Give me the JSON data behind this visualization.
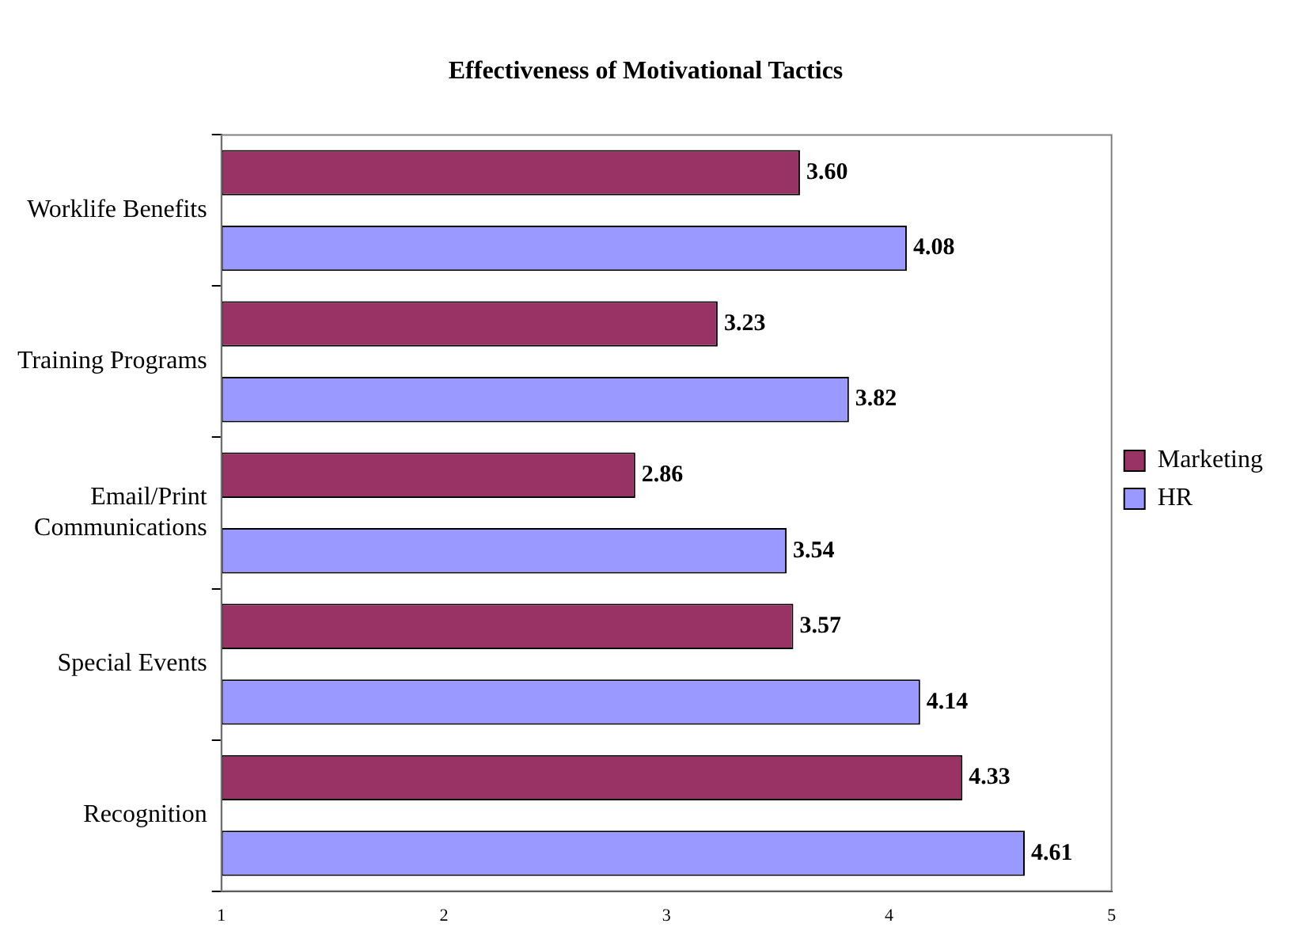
{
  "chart_data": {
    "type": "bar",
    "orientation": "horizontal",
    "title": "Effectiveness of Motivational Tactics",
    "categories": [
      "Worklife Benefits",
      "Training Programs",
      "Email/Print Communications",
      "Special Events",
      "Recognition"
    ],
    "series": [
      {
        "name": "Marketing",
        "color": "#993366",
        "values": [
          3.6,
          3.23,
          2.86,
          3.57,
          4.33
        ],
        "value_labels": [
          "3.60",
          "3.23",
          "2.86",
          "3.57",
          "4.33"
        ]
      },
      {
        "name": "HR",
        "color": "#9999ff",
        "values": [
          4.08,
          3.82,
          3.54,
          4.14,
          4.61
        ],
        "value_labels": [
          "4.08",
          "3.82",
          "3.54",
          "4.14",
          "4.61"
        ]
      }
    ],
    "xlim": [
      1,
      5
    ],
    "xticks": [
      1,
      2,
      3,
      4,
      5
    ],
    "grid": false,
    "legend": "right"
  }
}
